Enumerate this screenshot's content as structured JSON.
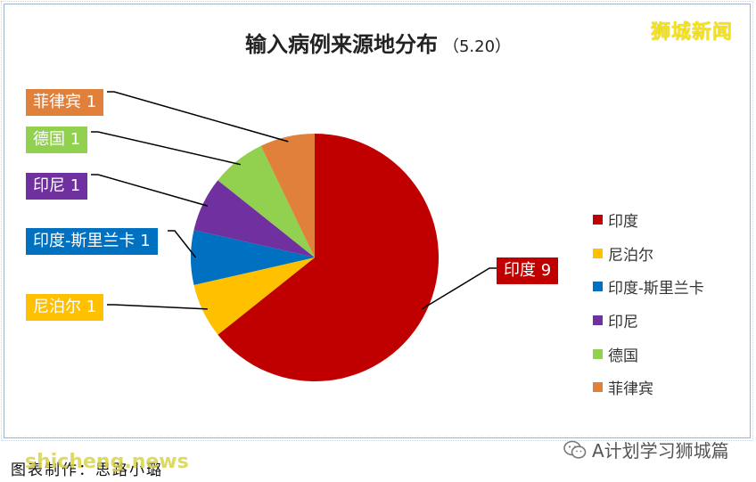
{
  "header": {
    "brand": "狮城新闻",
    "title": "输入病例来源地分布",
    "subtitle": "（5.20）"
  },
  "footer": {
    "credit": "图表制作：思路小璐",
    "site": "shicheng.news",
    "wechat": "A计划学习狮城篇"
  },
  "chart_data": {
    "type": "pie",
    "title": "输入病例来源地分布",
    "subtitle": "（5.20）",
    "slices": [
      {
        "label": "印度",
        "value": 9,
        "color": "#c00000",
        "callout": "印度 9"
      },
      {
        "label": "尼泊尔",
        "value": 1,
        "color": "#ffc000",
        "callout": "尼泊尔 1"
      },
      {
        "label": "印度-斯里兰卡",
        "value": 1,
        "color": "#0070c0",
        "callout": "印度-斯里兰卡 1"
      },
      {
        "label": "印尼",
        "value": 1,
        "color": "#7030a0",
        "callout": "印尼 1"
      },
      {
        "label": "德国",
        "value": 1,
        "color": "#92d050",
        "callout": "德国 1"
      },
      {
        "label": "菲律宾",
        "value": 1,
        "color": "#e0803a",
        "callout": "菲律宾 1"
      }
    ],
    "legend": "right"
  }
}
